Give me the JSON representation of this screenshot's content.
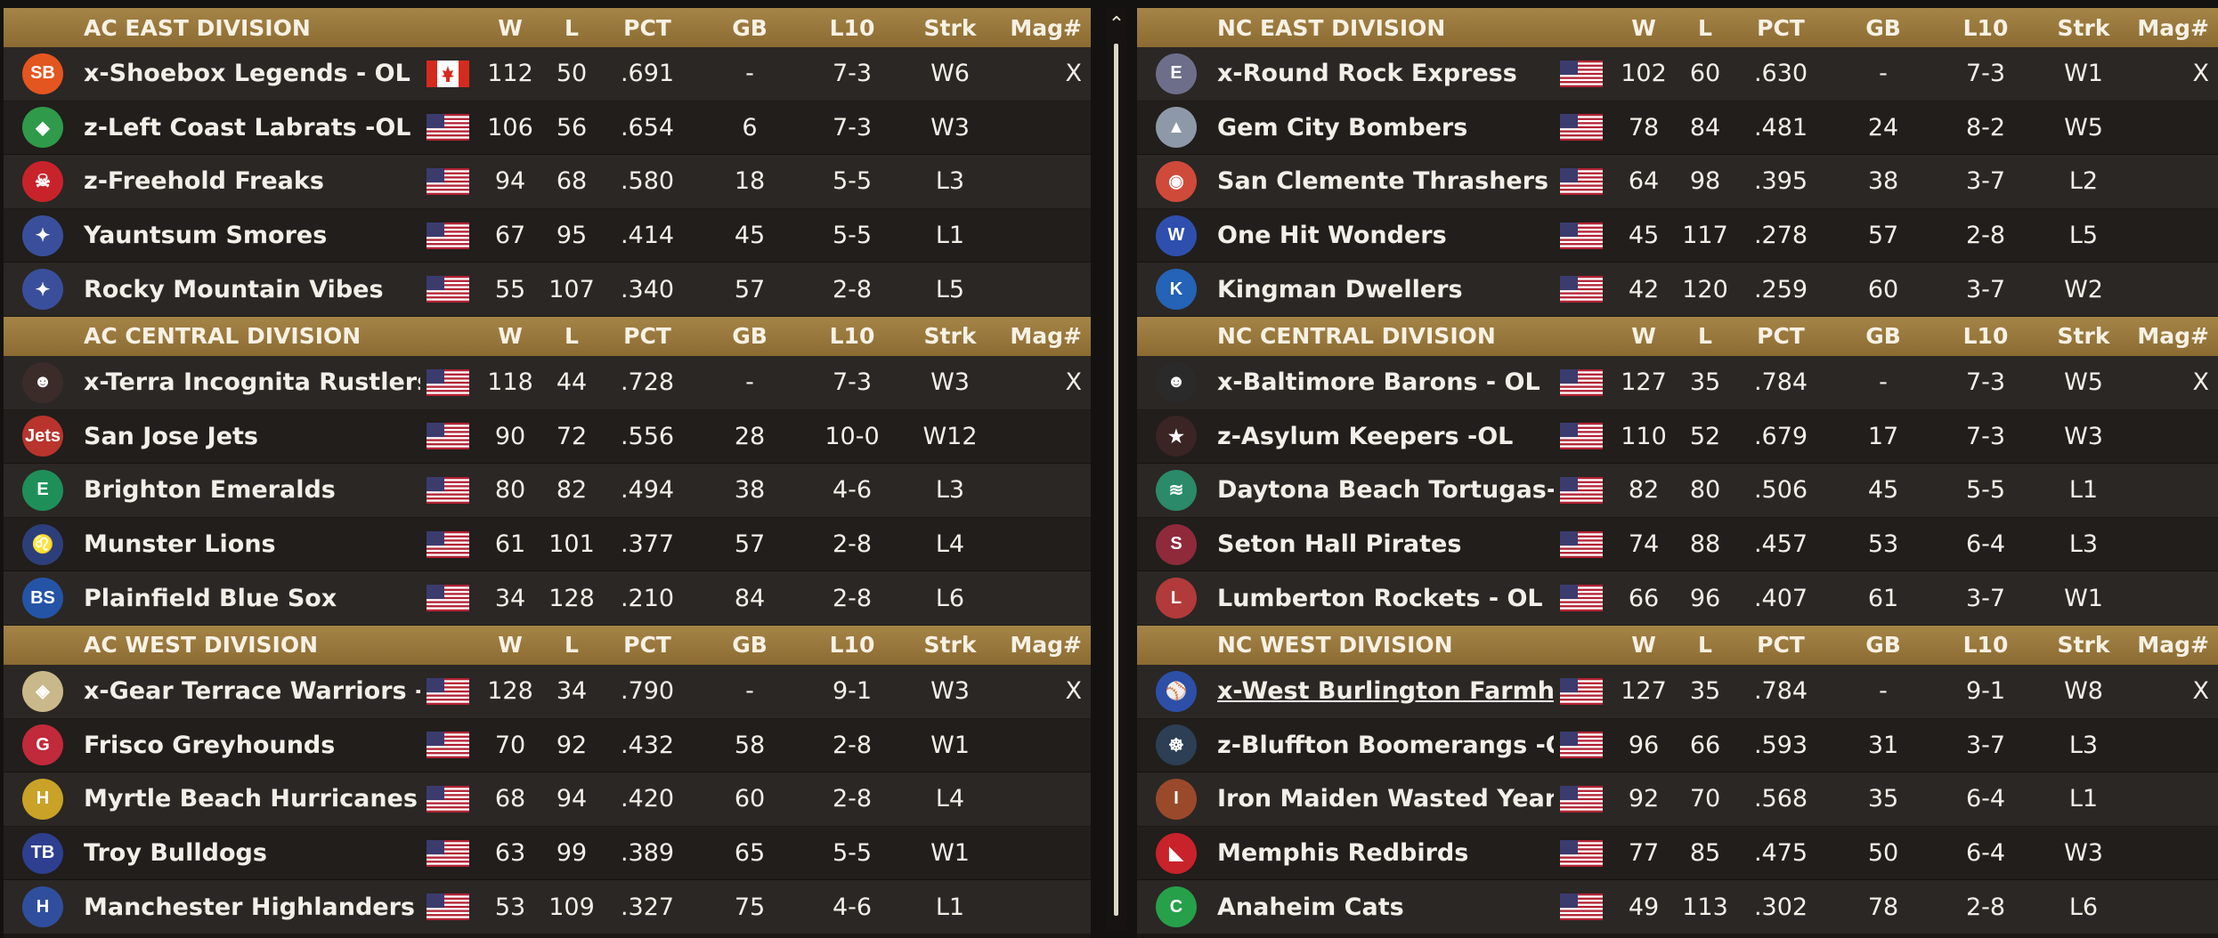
{
  "columns": {
    "w": "W",
    "l": "L",
    "pct": "PCT",
    "gb": "GB",
    "l10": "L10",
    "strk": "Strk",
    "mag": "Mag#"
  },
  "colors": {
    "header_gold": "#9c7a3d",
    "row_dark": "#211e1b",
    "row_light": "#2b2724"
  },
  "left": [
    {
      "title": "AC EAST DIVISION",
      "teams": [
        {
          "name": "x-Shoebox Legends - OL",
          "flag": "canada",
          "logo": "sb-logo-icon",
          "logo_text": "SB",
          "logo_color": "#e4561f",
          "w": "112",
          "l": "50",
          "pct": ".691",
          "gb": "-",
          "l10": "7-3",
          "strk": "W6",
          "mag": "X"
        },
        {
          "name": "z-Left Coast Labrats -OL",
          "flag": "usa",
          "logo": "labrats-logo-icon",
          "logo_text": "◆",
          "logo_color": "#2f9b4a",
          "w": "106",
          "l": "56",
          "pct": ".654",
          "gb": "6",
          "l10": "7-3",
          "strk": "W3",
          "mag": ""
        },
        {
          "name": "z-Freehold Freaks",
          "flag": "usa",
          "logo": "freaks-logo-icon",
          "logo_text": "☠",
          "logo_color": "#c8232b",
          "w": "94",
          "l": "68",
          "pct": ".580",
          "gb": "18",
          "l10": "5-5",
          "strk": "L3",
          "mag": ""
        },
        {
          "name": "Yauntsum Smores",
          "flag": "usa",
          "logo": "smores-logo-icon",
          "logo_text": "✦",
          "logo_color": "#3a4f9c",
          "w": "67",
          "l": "95",
          "pct": ".414",
          "gb": "45",
          "l10": "5-5",
          "strk": "L1",
          "mag": ""
        },
        {
          "name": "Rocky Mountain Vibes",
          "flag": "usa",
          "logo": "vibes-logo-icon",
          "logo_text": "✦",
          "logo_color": "#3a4f9c",
          "w": "55",
          "l": "107",
          "pct": ".340",
          "gb": "57",
          "l10": "2-8",
          "strk": "L5",
          "mag": ""
        }
      ]
    },
    {
      "title": "AC CENTRAL DIVISION",
      "teams": [
        {
          "name": "x-Terra Incognita Rustlers  -OL",
          "flag": "usa",
          "logo": "rustlers-logo-icon",
          "logo_text": "☻",
          "logo_color": "#3b2c2a",
          "w": "118",
          "l": "44",
          "pct": ".728",
          "gb": "-",
          "l10": "7-3",
          "strk": "W3",
          "mag": "X"
        },
        {
          "name": "San Jose Jets",
          "flag": "usa",
          "logo": "jets-logo-icon",
          "logo_text": "Jets",
          "logo_color": "#b8342d",
          "w": "90",
          "l": "72",
          "pct": ".556",
          "gb": "28",
          "l10": "10-0",
          "strk": "W12",
          "mag": ""
        },
        {
          "name": "Brighton Emeralds",
          "flag": "usa",
          "logo": "emeralds-logo-icon",
          "logo_text": "E",
          "logo_color": "#1f8f5a",
          "w": "80",
          "l": "82",
          "pct": ".494",
          "gb": "38",
          "l10": "4-6",
          "strk": "L3",
          "mag": ""
        },
        {
          "name": "Munster Lions",
          "flag": "usa",
          "logo": "lions-logo-icon",
          "logo_text": "♌",
          "logo_color": "#2d3f7a",
          "w": "61",
          "l": "101",
          "pct": ".377",
          "gb": "57",
          "l10": "2-8",
          "strk": "L4",
          "mag": ""
        },
        {
          "name": "Plainfield Blue Sox",
          "flag": "usa",
          "logo": "bluesox-logo-icon",
          "logo_text": "BS",
          "logo_color": "#2454a6",
          "w": "34",
          "l": "128",
          "pct": ".210",
          "gb": "84",
          "l10": "2-8",
          "strk": "L6",
          "mag": ""
        }
      ]
    },
    {
      "title": "AC WEST DIVISION",
      "teams": [
        {
          "name": "x-Gear Terrace Warriors - OL",
          "flag": "usa",
          "logo": "warriors-logo-icon",
          "logo_text": "◈",
          "logo_color": "#c9b98a",
          "w": "128",
          "l": "34",
          "pct": ".790",
          "gb": "-",
          "l10": "9-1",
          "strk": "W3",
          "mag": "X"
        },
        {
          "name": "Frisco Greyhounds",
          "flag": "usa",
          "logo": "greyhounds-logo-icon",
          "logo_text": "G",
          "logo_color": "#c02a3a",
          "w": "70",
          "l": "92",
          "pct": ".432",
          "gb": "58",
          "l10": "2-8",
          "strk": "W1",
          "mag": ""
        },
        {
          "name": "Myrtle Beach Hurricanes",
          "flag": "usa",
          "logo": "hurricanes-logo-icon",
          "logo_text": "H",
          "logo_color": "#c9a227",
          "w": "68",
          "l": "94",
          "pct": ".420",
          "gb": "60",
          "l10": "2-8",
          "strk": "L4",
          "mag": ""
        },
        {
          "name": "Troy Bulldogs",
          "flag": "usa",
          "logo": "bulldogs-logo-icon",
          "logo_text": "TB",
          "logo_color": "#2e3f8f",
          "w": "63",
          "l": "99",
          "pct": ".389",
          "gb": "65",
          "l10": "5-5",
          "strk": "W1",
          "mag": ""
        },
        {
          "name": "Manchester Highlanders",
          "flag": "usa",
          "logo": "highlanders-logo-icon",
          "logo_text": "H",
          "logo_color": "#2f4f9e",
          "w": "53",
          "l": "109",
          "pct": ".327",
          "gb": "75",
          "l10": "4-6",
          "strk": "L1",
          "mag": ""
        }
      ]
    }
  ],
  "right": [
    {
      "title": "NC EAST DIVISION",
      "teams": [
        {
          "name": "x-Round Rock Express",
          "flag": "usa",
          "logo": "express-logo-icon",
          "logo_text": "E",
          "logo_color": "#6d6f8a",
          "w": "102",
          "l": "60",
          "pct": ".630",
          "gb": "-",
          "l10": "7-3",
          "strk": "W1",
          "mag": "X"
        },
        {
          "name": "Gem City Bombers",
          "flag": "usa",
          "logo": "bombers-logo-icon",
          "logo_text": "▲",
          "logo_color": "#8d99a8",
          "w": "78",
          "l": "84",
          "pct": ".481",
          "gb": "24",
          "l10": "8-2",
          "strk": "W5",
          "mag": ""
        },
        {
          "name": "San Clemente Thrashers",
          "flag": "usa",
          "logo": "thrashers-logo-icon",
          "logo_text": "◉",
          "logo_color": "#d04a3a",
          "w": "64",
          "l": "98",
          "pct": ".395",
          "gb": "38",
          "l10": "3-7",
          "strk": "L2",
          "mag": ""
        },
        {
          "name": "One Hit Wonders",
          "flag": "usa",
          "logo": "wonders-logo-icon",
          "logo_text": "W",
          "logo_color": "#2f4fae",
          "w": "45",
          "l": "117",
          "pct": ".278",
          "gb": "57",
          "l10": "2-8",
          "strk": "L5",
          "mag": ""
        },
        {
          "name": "Kingman Dwellers",
          "flag": "usa",
          "logo": "dwellers-logo-icon",
          "logo_text": "K",
          "logo_color": "#2463b5",
          "w": "42",
          "l": "120",
          "pct": ".259",
          "gb": "60",
          "l10": "3-7",
          "strk": "W2",
          "mag": ""
        }
      ]
    },
    {
      "title": "NC CENTRAL DIVISION",
      "teams": [
        {
          "name": "x-Baltimore Barons - OL",
          "flag": "usa",
          "logo": "barons-logo-icon",
          "logo_text": "☻",
          "logo_color": "#2a2a2a",
          "w": "127",
          "l": "35",
          "pct": ".784",
          "gb": "-",
          "l10": "7-3",
          "strk": "W5",
          "mag": "X"
        },
        {
          "name": "z-Asylum Keepers -OL",
          "flag": "usa",
          "logo": "keepers-logo-icon",
          "logo_text": "★",
          "logo_color": "#3a2424",
          "w": "110",
          "l": "52",
          "pct": ".679",
          "gb": "17",
          "l10": "7-3",
          "strk": "W3",
          "mag": ""
        },
        {
          "name": "Daytona Beach Tortugas-OL",
          "flag": "usa",
          "logo": "tortugas-logo-icon",
          "logo_text": "≋",
          "logo_color": "#2a8a6a",
          "w": "82",
          "l": "80",
          "pct": ".506",
          "gb": "45",
          "l10": "5-5",
          "strk": "L1",
          "mag": ""
        },
        {
          "name": "Seton Hall Pirates",
          "flag": "usa",
          "logo": "pirates-logo-icon",
          "logo_text": "S",
          "logo_color": "#8f2a3a",
          "w": "74",
          "l": "88",
          "pct": ".457",
          "gb": "53",
          "l10": "6-4",
          "strk": "L3",
          "mag": ""
        },
        {
          "name": "Lumberton Rockets - OL",
          "flag": "usa",
          "logo": "rockets-logo-icon",
          "logo_text": "L",
          "logo_color": "#b23a3a",
          "w": "66",
          "l": "96",
          "pct": ".407",
          "gb": "61",
          "l10": "3-7",
          "strk": "W1",
          "mag": ""
        }
      ]
    },
    {
      "title": "NC WEST DIVISION",
      "teams": [
        {
          "name": "x-West Burlington Farmhands -",
          "flag": "usa",
          "logo": "farmhands-logo-icon",
          "logo_text": "⚾",
          "logo_color": "#2d4fa8",
          "w": "127",
          "l": "35",
          "pct": ".784",
          "gb": "-",
          "l10": "9-1",
          "strk": "W8",
          "mag": "X",
          "underline": true
        },
        {
          "name": "z-Bluffton Boomerangs -OL",
          "flag": "usa",
          "logo": "boomerangs-logo-icon",
          "logo_text": "☸",
          "logo_color": "#2d3f55",
          "w": "96",
          "l": "66",
          "pct": ".593",
          "gb": "31",
          "l10": "3-7",
          "strk": "L3",
          "mag": ""
        },
        {
          "name": "Iron Maiden Wasted Years - OL",
          "flag": "usa",
          "logo": "wastedyears-logo-icon",
          "logo_text": "I",
          "logo_color": "#9a4a2a",
          "w": "92",
          "l": "70",
          "pct": ".568",
          "gb": "35",
          "l10": "6-4",
          "strk": "L1",
          "mag": ""
        },
        {
          "name": "Memphis Redbirds",
          "flag": "usa",
          "logo": "redbirds-logo-icon",
          "logo_text": "◣",
          "logo_color": "#c8222a",
          "w": "77",
          "l": "85",
          "pct": ".475",
          "gb": "50",
          "l10": "6-4",
          "strk": "W3",
          "mag": ""
        },
        {
          "name": "Anaheim Cats",
          "flag": "usa",
          "logo": "cats-logo-icon",
          "logo_text": "C",
          "logo_color": "#27a04a",
          "w": "49",
          "l": "113",
          "pct": ".302",
          "gb": "78",
          "l10": "2-8",
          "strk": "L6",
          "mag": ""
        }
      ]
    }
  ]
}
